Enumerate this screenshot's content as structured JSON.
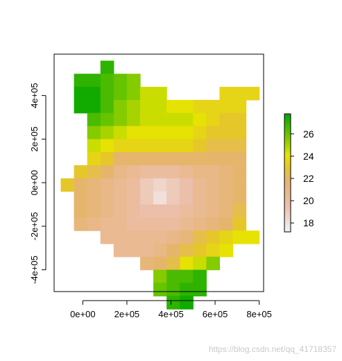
{
  "chart_data": {
    "type": "heatmap",
    "x_ticks": [
      "0e+00",
      "2e+05",
      "4e+05",
      "6e+05",
      "8e+05"
    ],
    "x_tick_values": [
      0,
      200000,
      400000,
      600000,
      800000
    ],
    "y_ticks": [
      "-4e+05",
      "-2e+05",
      "0e+00",
      "2e+05",
      "4e+05"
    ],
    "y_tick_values": [
      -400000,
      -200000,
      0,
      200000,
      400000
    ],
    "xlim": [
      -130000,
      820000
    ],
    "ylim": [
      -500000,
      590000
    ],
    "cell_size": 60000,
    "grid_origin": {
      "x": -100000,
      "y": 560000
    },
    "legend": {
      "min": 17.2,
      "max": 27.8,
      "ticks": [
        18,
        20,
        22,
        24,
        26
      ],
      "tick_labels": [
        "18",
        "20",
        "22",
        "24",
        "26"
      ]
    },
    "grid_values": [
      [
        null,
        null,
        null,
        27,
        null,
        null,
        null,
        null,
        null,
        null,
        null,
        null,
        null,
        null,
        null
      ],
      [
        null,
        27,
        27,
        26.5,
        26,
        25.5,
        null,
        null,
        null,
        null,
        null,
        null,
        null,
        null,
        null
      ],
      [
        null,
        27.5,
        27.5,
        26.5,
        26,
        25.5,
        24.5,
        24.5,
        null,
        null,
        null,
        null,
        23.5,
        23.5,
        23.5
      ],
      [
        null,
        27.5,
        27.5,
        26.5,
        25.5,
        25,
        24.5,
        24.5,
        24,
        24,
        23.5,
        23.5,
        23.5,
        23.5,
        null
      ],
      [
        null,
        null,
        26.5,
        26,
        25.5,
        25,
        24.5,
        24.5,
        24.5,
        24.5,
        24,
        23.5,
        23,
        23,
        null
      ],
      [
        null,
        null,
        25.5,
        25,
        24.5,
        24,
        24,
        24,
        24,
        24,
        23.5,
        23,
        23,
        23,
        null
      ],
      [
        null,
        null,
        24.5,
        24,
        23.5,
        23.5,
        23.5,
        23.5,
        23.5,
        23.5,
        23,
        22.5,
        22.5,
        22.5,
        null
      ],
      [
        null,
        null,
        23.5,
        23,
        22,
        22,
        22,
        22,
        22,
        22,
        22,
        22,
        22,
        22,
        null
      ],
      [
        null,
        23,
        22.5,
        22,
        21,
        20.5,
        20,
        20,
        20,
        20.5,
        21,
        21,
        21.5,
        22,
        null
      ],
      [
        23,
        22,
        21.5,
        21,
        20.5,
        20,
        19,
        18.5,
        19,
        19.5,
        20.5,
        21,
        21.5,
        22,
        null
      ],
      [
        null,
        22,
        21.5,
        21,
        20.5,
        20,
        19,
        18,
        19,
        19.5,
        20.5,
        21,
        21.5,
        22,
        null
      ],
      [
        null,
        22,
        21.5,
        21,
        20.5,
        20,
        19.5,
        19.5,
        19.5,
        20,
        20.5,
        21,
        21.5,
        22.5,
        null
      ],
      [
        null,
        21.5,
        21,
        20.5,
        20.5,
        20,
        20,
        20,
        20,
        20.5,
        21,
        21.5,
        22,
        23,
        null
      ],
      [
        null,
        null,
        null,
        20.5,
        20.5,
        20.5,
        20.5,
        20.5,
        21,
        21.5,
        22.5,
        23,
        23.5,
        24,
        24
      ],
      [
        null,
        null,
        null,
        null,
        20.5,
        20.5,
        20.5,
        21,
        22,
        22.5,
        23,
        23.5,
        24,
        null,
        null
      ],
      [
        null,
        null,
        null,
        null,
        null,
        null,
        21.5,
        22,
        22.5,
        24,
        24.5,
        25.5,
        null,
        null,
        null
      ],
      [
        null,
        null,
        null,
        null,
        null,
        null,
        null,
        25.5,
        26.5,
        26.5,
        27,
        null,
        null,
        null,
        null
      ],
      [
        null,
        null,
        null,
        null,
        null,
        null,
        null,
        26,
        26.5,
        27,
        27,
        null,
        null,
        null,
        null
      ],
      [
        null,
        null,
        null,
        null,
        null,
        null,
        null,
        null,
        27,
        27.5,
        null,
        null,
        null,
        null,
        null
      ]
    ]
  },
  "watermark": "https://blog.csdn.net/qq_41718357"
}
